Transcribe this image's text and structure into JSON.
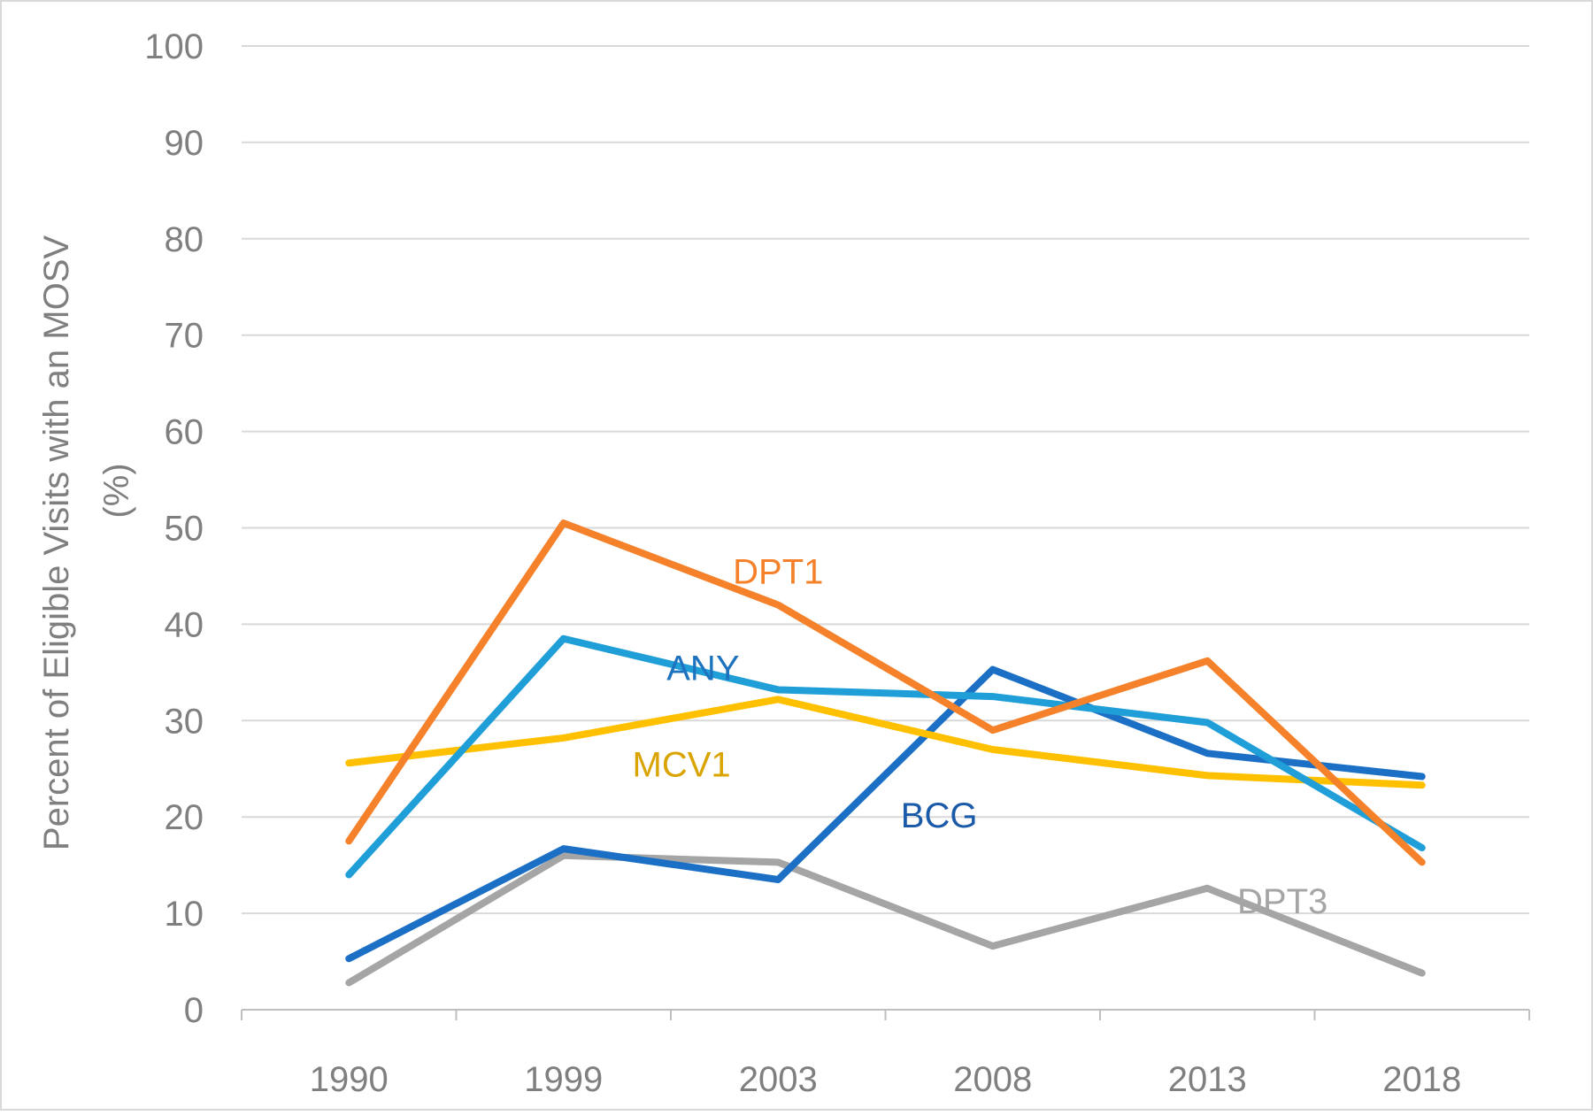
{
  "chart_data": {
    "type": "line",
    "title": "",
    "xlabel": "",
    "ylabel_lines": [
      "Percent of Eligible Visits with an MOSV",
      "(%)"
    ],
    "categories": [
      "1990",
      "1999",
      "2003",
      "2008",
      "2013",
      "2018"
    ],
    "ylim": [
      0,
      100
    ],
    "ytick_step": 10,
    "yticks": [
      "0",
      "10",
      "20",
      "30",
      "40",
      "50",
      "60",
      "70",
      "80",
      "90",
      "100"
    ],
    "grid": true,
    "series": [
      {
        "name": "DPT1",
        "color": "#F5822A",
        "label_color": "#F5822A",
        "values": [
          17.5,
          50.5,
          42,
          29,
          36.2,
          15.3
        ],
        "label_at": [
          2.0,
          45.5
        ]
      },
      {
        "name": "ANY",
        "color": "#1F9ED8",
        "label_color": "#1E73BE",
        "values": [
          14,
          38.5,
          33.2,
          32.5,
          29.8,
          16.8
        ],
        "label_at": [
          1.65,
          35.5
        ]
      },
      {
        "name": "MCV1",
        "color": "#FFC000",
        "label_color": "#D9A300",
        "values": [
          25.6,
          28.2,
          32.2,
          27,
          24.3,
          23.3
        ],
        "label_at": [
          1.55,
          25.5
        ]
      },
      {
        "name": "BCG",
        "color": "#1B70C6",
        "label_color": "#1B5AA8",
        "values": [
          5.3,
          16.7,
          13.5,
          35.3,
          26.6,
          24.2
        ],
        "label_at": [
          2.75,
          20.2
        ]
      },
      {
        "name": "DPT3",
        "color": "#A5A5A5",
        "label_color": "#A5A5A5",
        "values": [
          2.8,
          16,
          15.3,
          6.6,
          12.6,
          3.8
        ],
        "label_at": [
          4.35,
          11.3
        ]
      }
    ],
    "draw_order": [
      "DPT3",
      "BCG",
      "MCV1",
      "ANY",
      "DPT1"
    ]
  }
}
